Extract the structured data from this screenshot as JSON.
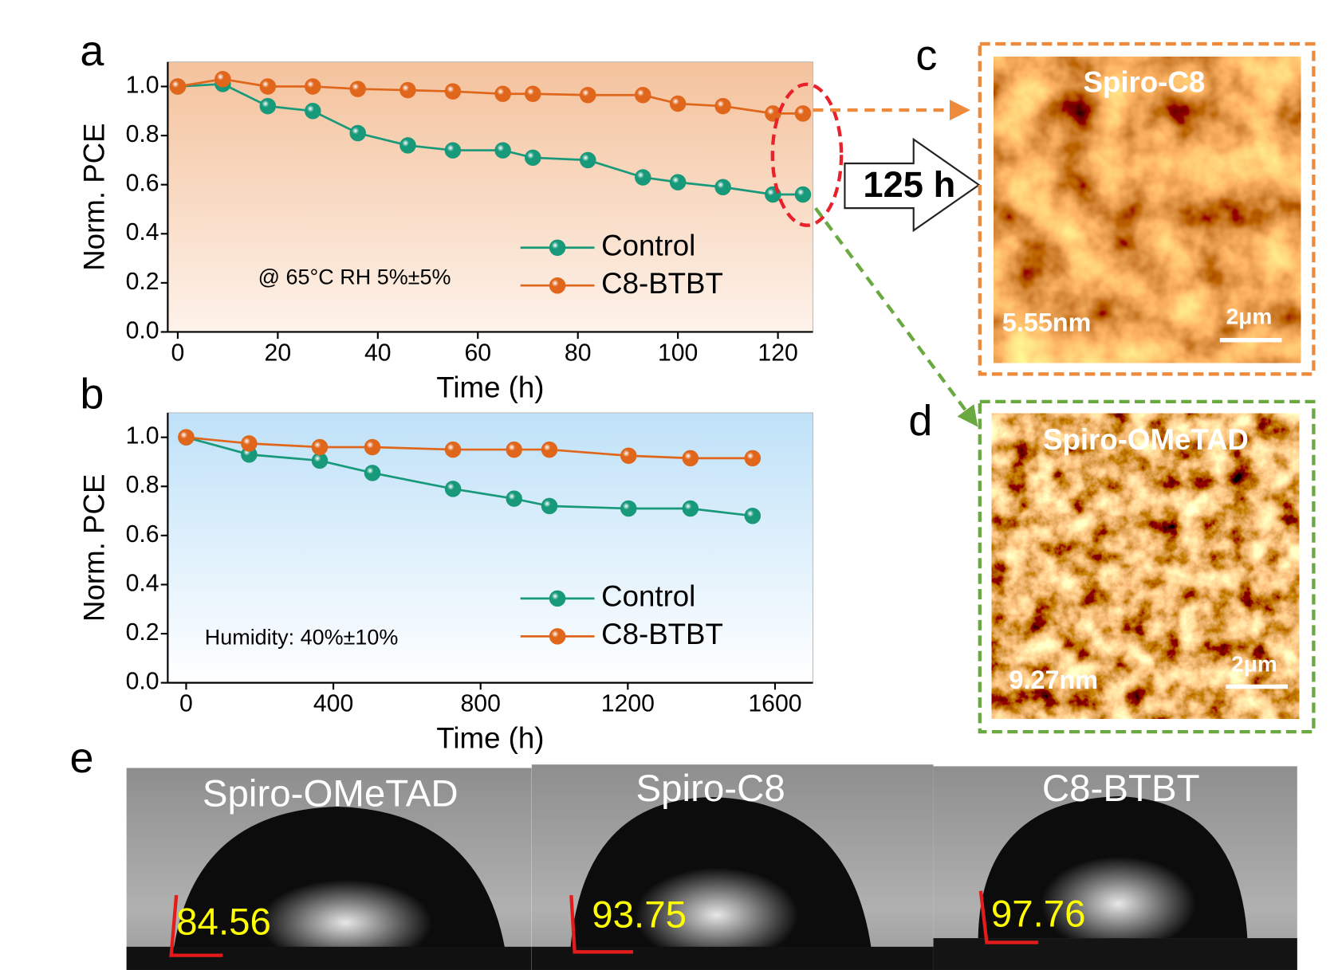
{
  "chart_data": [
    {
      "type": "line",
      "annotation": "@ 65°C RH 5%±5%",
      "xlabel": "Time (h)",
      "ylabel": "Norm. PCE",
      "x": [
        0,
        9,
        18,
        27,
        36,
        46,
        55,
        65,
        71,
        82,
        93,
        100,
        109,
        119,
        125
      ],
      "series": [
        {
          "name": "Control",
          "color": "#17997a",
          "values": [
            1.0,
            1.01,
            0.92,
            0.9,
            0.81,
            0.76,
            0.74,
            0.74,
            0.71,
            0.7,
            0.63,
            0.61,
            0.59,
            0.56,
            0.56
          ]
        },
        {
          "name": "C8-BTBT",
          "color": "#e0661c",
          "values": [
            1.0,
            1.03,
            1.0,
            1.0,
            0.99,
            0.985,
            0.98,
            0.97,
            0.97,
            0.965,
            0.965,
            0.93,
            0.92,
            0.89,
            0.89
          ]
        }
      ],
      "xlim": [
        -2,
        127
      ],
      "ylim": [
        0,
        1.1
      ],
      "xticks": [
        0,
        20,
        40,
        60,
        80,
        100,
        120
      ],
      "yticks": [
        {
          "value": 0,
          "label": "0.0"
        },
        0.2,
        0.4,
        0.6,
        0.8,
        {
          "value": 1,
          "label": "1.0"
        }
      ],
      "background": [
        "#f4c29c",
        "#fdf2ea"
      ],
      "legend": "lower right",
      "grid": false
    },
    {
      "type": "line",
      "annotation": "Humidity: 40%±10%",
      "xlabel": "Time (h)",
      "ylabel": "Norm. PCE",
      "x": [
        0,
        171,
        363,
        506,
        725,
        891,
        987,
        1202,
        1370,
        1539
      ],
      "series": [
        {
          "name": "Control",
          "color": "#17997a",
          "values": [
            1.0,
            0.93,
            0.905,
            0.855,
            0.79,
            0.75,
            0.72,
            0.71,
            0.71,
            0.68
          ]
        },
        {
          "name": "C8-BTBT",
          "color": "#e0661c",
          "values": [
            1.0,
            0.975,
            0.96,
            0.96,
            0.95,
            0.95,
            0.95,
            0.925,
            0.915,
            0.915
          ]
        }
      ],
      "xlim": [
        -50,
        1703
      ],
      "ylim": [
        0,
        1.1
      ],
      "xticks": [
        0,
        400,
        800,
        1200,
        1600
      ],
      "yticks": [
        {
          "value": 0,
          "label": "0.0"
        },
        0.2,
        0.4,
        0.6,
        0.8,
        {
          "value": 1,
          "label": "1.0"
        }
      ],
      "background": [
        "#bfe1f8",
        "#ffffff"
      ],
      "legend": "lower right",
      "grid": false
    }
  ],
  "panel_labels": [
    "a",
    "b",
    "c",
    "d",
    "e"
  ],
  "arrow_label": "125 h",
  "afm": [
    {
      "title": "Spiro-C8",
      "roughness": "5.55nm",
      "scale_bar": "2μm"
    },
    {
      "title": "Spiro-OMeTAD",
      "roughness": "9.27nm",
      "scale_bar": "2μm"
    }
  ],
  "contact_angle": [
    {
      "title": "Spiro-OMeTAD",
      "angle": 84.56
    },
    {
      "title": "Spiro-C8",
      "angle": 93.75
    },
    {
      "title": "C8-BTBT",
      "angle": 97.76
    }
  ]
}
